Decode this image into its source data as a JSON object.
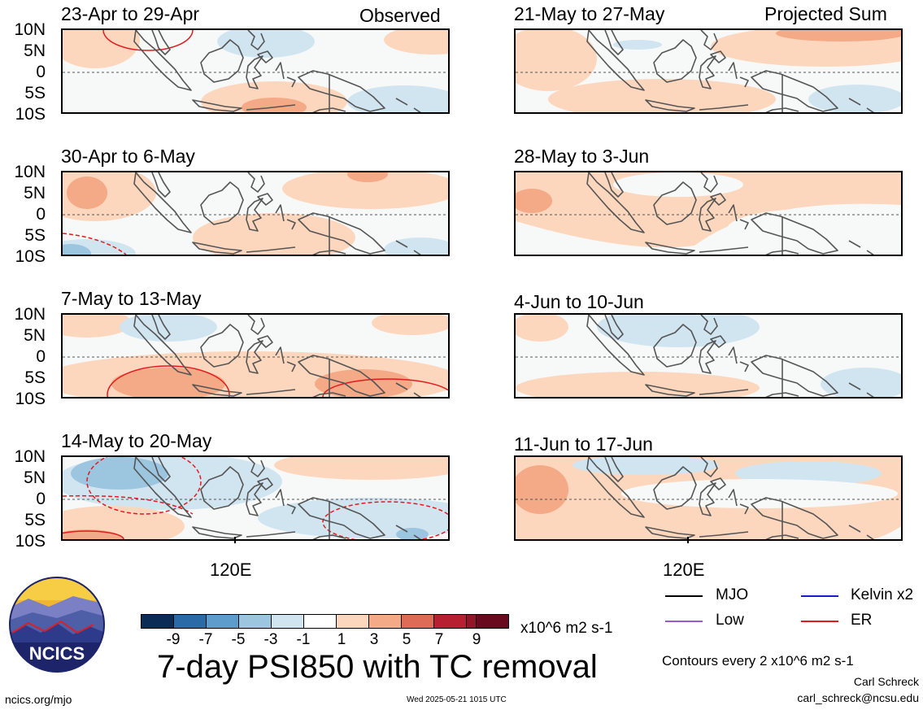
{
  "left_header": "Observed",
  "right_header": "Projected Sum",
  "lat_labels": [
    "10N",
    "5N",
    "0",
    "5S",
    "10S"
  ],
  "panels_left": [
    {
      "title": "23-Apr to 29-Apr"
    },
    {
      "title": "30-Apr to 6-May"
    },
    {
      "title": "7-May to 13-May"
    },
    {
      "title": "14-May to 20-May"
    }
  ],
  "panels_right": [
    {
      "title": "21-May to 27-May"
    },
    {
      "title": "28-May to 3-Jun"
    },
    {
      "title": "4-Jun to 10-Jun"
    },
    {
      "title": "11-Jun to 17-Jun"
    }
  ],
  "lon_label_left": "120E",
  "lon_label_right": "120E",
  "colorbar": {
    "labels": [
      "-9",
      "-7",
      "-5",
      "-3",
      "-1",
      "1",
      "3",
      "5",
      "7",
      "9"
    ],
    "colors": [
      "#0a2c55",
      "#2a6aa6",
      "#5d9ccb",
      "#9cc6e0",
      "#d1e5f1",
      "#ffffff",
      "#fdd7bd",
      "#f4a987",
      "#dd6b55",
      "#b72030",
      "#6a0a1f"
    ],
    "units": "x10^6 m2 s-1"
  },
  "main_title": "7-day PSI850 with TC removal",
  "legend": [
    {
      "label": "MJO",
      "color": "#000000"
    },
    {
      "label": "Kelvin x2",
      "color": "#1a1acc"
    },
    {
      "label": "Low",
      "color": "#9b59d0"
    },
    {
      "label": "ER",
      "color": "#e31a1c"
    }
  ],
  "contour_note": "Contours every 2 x10^6 m2 s-1",
  "author": "Carl Schreck",
  "email": "carl_schreck@ncsu.edu",
  "website": "ncics.org/mjo",
  "timestamp": "Wed 2025-05-21 1015 UTC",
  "logo_text": "NCICS"
}
